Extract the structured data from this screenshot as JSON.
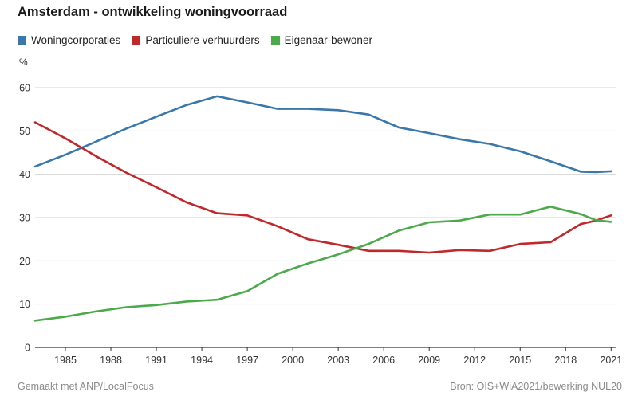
{
  "header": {
    "title": "Amsterdam - ontwikkeling woningvoorraad"
  },
  "footer": {
    "made_with": "Gemaakt met ANP/LocalFocus",
    "source": "Bron:  OIS+WiA2021/bewerking NUL20"
  },
  "colors": {
    "woningcorporaties": "#3b78aa",
    "particuliere": "#c0282c",
    "eigenaar": "#4caa4c",
    "grid": "#d6d6d6",
    "axis": "#333333"
  },
  "chart_data": {
    "type": "line",
    "title": "Amsterdam - ontwikkeling woningvoorraad",
    "ylabel": "%",
    "xlabel": "",
    "ylim": [
      0,
      60
    ],
    "xlim": [
      1983,
      2021.3
    ],
    "yticks": [
      0,
      10,
      20,
      30,
      40,
      50,
      60
    ],
    "xticks": [
      1985,
      1988,
      1991,
      1994,
      1997,
      2000,
      2003,
      2006,
      2009,
      2012,
      2015,
      2018,
      2021
    ],
    "grid": true,
    "legend_position": "top-left",
    "x": [
      1983,
      1985,
      1987,
      1989,
      1991,
      1993,
      1995,
      1997,
      1999,
      2001,
      2003,
      2005,
      2007,
      2009,
      2011,
      2013,
      2015,
      2017,
      2019,
      2020,
      2021
    ],
    "series": [
      {
        "name": "Woningcorporaties",
        "color": "#3b78aa",
        "values": [
          41.8,
          44.5,
          47.5,
          50.5,
          53.3,
          56.0,
          58.0,
          56.6,
          55.1,
          55.1,
          54.8,
          53.8,
          50.8,
          49.5,
          48.1,
          47.0,
          45.3,
          43.0,
          40.6,
          40.5,
          40.7
        ]
      },
      {
        "name": "Particuliere verhuurders",
        "color": "#c0282c",
        "values": [
          52.0,
          48.3,
          44.2,
          40.4,
          37.0,
          33.5,
          31.0,
          30.5,
          28.0,
          25.0,
          23.7,
          22.3,
          22.3,
          21.9,
          22.5,
          22.3,
          23.9,
          24.3,
          28.5,
          29.3,
          30.5
        ]
      },
      {
        "name": "Eigenaar-bewoner",
        "color": "#4caa4c",
        "values": [
          6.2,
          7.1,
          8.3,
          9.3,
          9.8,
          10.6,
          11.0,
          13.0,
          17.0,
          19.4,
          21.5,
          23.9,
          27.0,
          28.9,
          29.3,
          30.7,
          30.7,
          32.5,
          30.8,
          29.4,
          29.0
        ]
      }
    ]
  }
}
